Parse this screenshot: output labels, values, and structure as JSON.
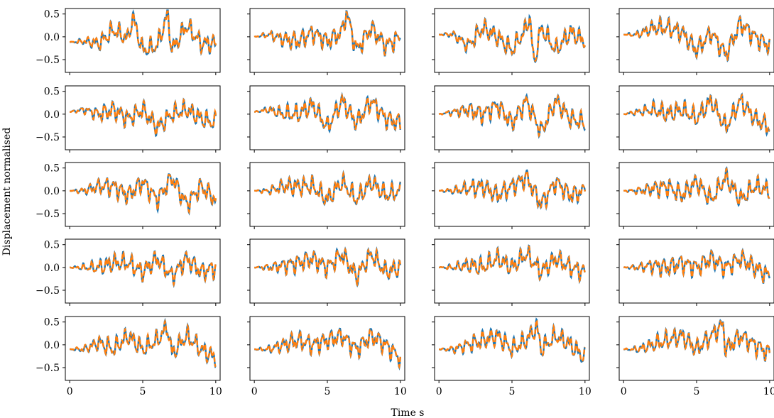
{
  "figure": {
    "xlabel": "Time s",
    "ylabel": "Displacement normalised"
  },
  "chart_data": {
    "type": "line",
    "rows": 5,
    "cols": 4,
    "shared_x": true,
    "shared_y": true,
    "xlim": [
      -0.3,
      10.3
    ],
    "ylim": [
      -0.78,
      0.62
    ],
    "xticks": [
      0,
      5,
      10
    ],
    "xtick_labels": [
      "0",
      "5",
      "10"
    ],
    "yticks": [
      0.5,
      0.0,
      -0.5
    ],
    "ytick_labels": [
      "0.5",
      "0.0",
      "−0.5"
    ],
    "grid": false,
    "colors": {
      "series_a": "#1f77b4",
      "series_b": "#ff7f0e"
    },
    "series_styles": {
      "series_a": "solid",
      "series_b": "dashed"
    },
    "series_shapes": [
      [
        [
          0,
          -0.12
        ],
        [
          1,
          -0.1
        ],
        [
          2,
          -0.15
        ],
        [
          3,
          0.15
        ],
        [
          4,
          -0.05
        ],
        [
          4.3,
          0.45
        ],
        [
          5,
          -0.3
        ],
        [
          6,
          -0.2
        ],
        [
          6.7,
          0.5
        ],
        [
          7,
          -0.3
        ],
        [
          8,
          0.25
        ],
        [
          9,
          -0.15
        ],
        [
          10,
          -0.15
        ]
      ],
      [
        [
          0,
          0.0
        ],
        [
          1,
          0.05
        ],
        [
          2,
          -0.05
        ],
        [
          3,
          -0.1
        ],
        [
          4,
          0.1
        ],
        [
          5,
          -0.1
        ],
        [
          6,
          0.1
        ],
        [
          6.3,
          0.55
        ],
        [
          7,
          -0.3
        ],
        [
          8,
          0.2
        ],
        [
          9,
          -0.2
        ],
        [
          10,
          0.0
        ]
      ],
      [
        [
          0,
          0.05
        ],
        [
          1,
          0.05
        ],
        [
          2,
          -0.2
        ],
        [
          3,
          0.2
        ],
        [
          4,
          0.0
        ],
        [
          5,
          -0.3
        ],
        [
          6,
          0.2
        ],
        [
          6.2,
          0.5
        ],
        [
          6.5,
          -0.6
        ],
        [
          7,
          0.2
        ],
        [
          8,
          -0.3
        ],
        [
          9,
          0.1
        ],
        [
          10,
          -0.1
        ]
      ],
      [
        [
          0,
          0.05
        ],
        [
          1,
          0.05
        ],
        [
          2,
          0.2
        ],
        [
          3,
          0.2
        ],
        [
          4,
          0.1
        ],
        [
          5,
          -0.3
        ],
        [
          6,
          0.1
        ],
        [
          7,
          -0.4
        ],
        [
          8,
          0.3
        ],
        [
          9,
          0.0
        ],
        [
          10,
          -0.2
        ]
      ],
      [
        [
          0,
          0.05
        ],
        [
          1,
          0.1
        ],
        [
          2,
          0.0
        ],
        [
          3,
          0.1
        ],
        [
          4,
          -0.1
        ],
        [
          5,
          0.1
        ],
        [
          6,
          -0.3
        ],
        [
          7,
          0.0
        ],
        [
          8,
          0.1
        ],
        [
          9,
          -0.1
        ],
        [
          10,
          -0.2
        ]
      ],
      [
        [
          0,
          0.05
        ],
        [
          1,
          0.1
        ],
        [
          2,
          0.0
        ],
        [
          3,
          0.0
        ],
        [
          4,
          0.2
        ],
        [
          5,
          -0.3
        ],
        [
          6,
          0.3
        ],
        [
          7,
          -0.2
        ],
        [
          8,
          0.3
        ],
        [
          9,
          -0.1
        ],
        [
          10,
          -0.2
        ]
      ],
      [
        [
          0,
          0.0
        ],
        [
          1,
          0.05
        ],
        [
          2,
          0.1
        ],
        [
          3,
          0.0
        ],
        [
          4,
          0.2
        ],
        [
          5,
          -0.2
        ],
        [
          6,
          0.3
        ],
        [
          7,
          -0.4
        ],
        [
          8,
          0.3
        ],
        [
          9,
          -0.1
        ],
        [
          10,
          -0.2
        ]
      ],
      [
        [
          0,
          0.0
        ],
        [
          1,
          0.05
        ],
        [
          2,
          0.1
        ],
        [
          3,
          0.0
        ],
        [
          4,
          0.1
        ],
        [
          5,
          -0.1
        ],
        [
          6,
          0.3
        ],
        [
          7,
          -0.3
        ],
        [
          8,
          0.3
        ],
        [
          9,
          -0.1
        ],
        [
          10,
          -0.3
        ]
      ],
      [
        [
          0,
          0.0
        ],
        [
          1,
          0.0
        ],
        [
          2,
          0.1
        ],
        [
          3,
          0.1
        ],
        [
          4,
          -0.1
        ],
        [
          5,
          0.2
        ],
        [
          6,
          -0.2
        ],
        [
          7,
          0.3
        ],
        [
          8,
          -0.3
        ],
        [
          9,
          0.1
        ],
        [
          10,
          -0.2
        ]
      ],
      [
        [
          0,
          0.0
        ],
        [
          1,
          0.0
        ],
        [
          2,
          0.1
        ],
        [
          3,
          0.1
        ],
        [
          4,
          0.1
        ],
        [
          5,
          -0.2
        ],
        [
          6,
          0.2
        ],
        [
          7,
          -0.2
        ],
        [
          8,
          0.2
        ],
        [
          9,
          -0.1
        ],
        [
          10,
          0.0
        ]
      ],
      [
        [
          0,
          0.0
        ],
        [
          1,
          0.0
        ],
        [
          2,
          0.05
        ],
        [
          3,
          0.1
        ],
        [
          4,
          -0.1
        ],
        [
          5,
          0.1
        ],
        [
          6,
          0.3
        ],
        [
          7,
          -0.3
        ],
        [
          8,
          0.2
        ],
        [
          9,
          -0.1
        ],
        [
          10,
          0.0
        ]
      ],
      [
        [
          0,
          0.0
        ],
        [
          1,
          0.0
        ],
        [
          2,
          0.05
        ],
        [
          3,
          0.1
        ],
        [
          4,
          -0.1
        ],
        [
          5,
          0.2
        ],
        [
          6,
          -0.2
        ],
        [
          7,
          0.3
        ],
        [
          8,
          -0.2
        ],
        [
          9,
          0.1
        ],
        [
          10,
          0.0
        ]
      ],
      [
        [
          0,
          0.0
        ],
        [
          1,
          0.0
        ],
        [
          2,
          0.0
        ],
        [
          3,
          0.1
        ],
        [
          4,
          0.1
        ],
        [
          5,
          -0.1
        ],
        [
          6,
          0.2
        ],
        [
          7,
          -0.2
        ],
        [
          8,
          0.2
        ],
        [
          9,
          -0.1
        ],
        [
          10,
          0.0
        ]
      ],
      [
        [
          0,
          0.0
        ],
        [
          1,
          0.0
        ],
        [
          2,
          0.05
        ],
        [
          3,
          0.1
        ],
        [
          4,
          0.2
        ],
        [
          5,
          0.0
        ],
        [
          6,
          0.3
        ],
        [
          7,
          -0.2
        ],
        [
          8,
          0.3
        ],
        [
          9,
          -0.1
        ],
        [
          10,
          0.0
        ]
      ],
      [
        [
          0,
          0.0
        ],
        [
          1,
          0.0
        ],
        [
          2,
          0.05
        ],
        [
          3,
          0.0
        ],
        [
          4,
          0.2
        ],
        [
          5,
          0.0
        ],
        [
          6,
          0.3
        ],
        [
          7,
          -0.1
        ],
        [
          8,
          0.2
        ],
        [
          9,
          0.0
        ],
        [
          10,
          -0.1
        ]
      ],
      [
        [
          0,
          0.0
        ],
        [
          1,
          0.0
        ],
        [
          2,
          0.05
        ],
        [
          3,
          0.0
        ],
        [
          4,
          0.1
        ],
        [
          5,
          0.0
        ],
        [
          6,
          0.2
        ],
        [
          7,
          0.0
        ],
        [
          8,
          0.2
        ],
        [
          9,
          0.0
        ],
        [
          10,
          -0.2
        ]
      ],
      [
        [
          0,
          -0.1
        ],
        [
          1,
          -0.1
        ],
        [
          2,
          0.05
        ],
        [
          3,
          -0.1
        ],
        [
          4,
          0.2
        ],
        [
          5,
          -0.1
        ],
        [
          6,
          0.1
        ],
        [
          6.7,
          0.4
        ],
        [
          7,
          -0.2
        ],
        [
          8,
          0.2
        ],
        [
          9,
          -0.1
        ],
        [
          10,
          -0.3
        ]
      ],
      [
        [
          0,
          -0.1
        ],
        [
          1,
          -0.1
        ],
        [
          2,
          0.0
        ],
        [
          3,
          0.1
        ],
        [
          4,
          0.0
        ],
        [
          5,
          0.1
        ],
        [
          6,
          0.2
        ],
        [
          7,
          -0.1
        ],
        [
          8,
          0.2
        ],
        [
          9,
          0.0
        ],
        [
          10,
          -0.3
        ]
      ],
      [
        [
          0,
          -0.1
        ],
        [
          1,
          -0.1
        ],
        [
          2,
          0.0
        ],
        [
          3,
          0.1
        ],
        [
          4,
          0.2
        ],
        [
          5,
          -0.1
        ],
        [
          6,
          0.1
        ],
        [
          6.7,
          0.4
        ],
        [
          7,
          -0.1
        ],
        [
          8,
          0.2
        ],
        [
          9,
          0.0
        ],
        [
          10,
          -0.3
        ]
      ],
      [
        [
          0,
          -0.1
        ],
        [
          1,
          -0.1
        ],
        [
          2,
          0.0
        ],
        [
          3,
          0.1
        ],
        [
          4,
          0.2
        ],
        [
          5,
          -0.1
        ],
        [
          6,
          0.2
        ],
        [
          6.8,
          0.45
        ],
        [
          7,
          -0.1
        ],
        [
          8,
          0.2
        ],
        [
          9,
          0.0
        ],
        [
          10,
          -0.2
        ]
      ]
    ]
  }
}
